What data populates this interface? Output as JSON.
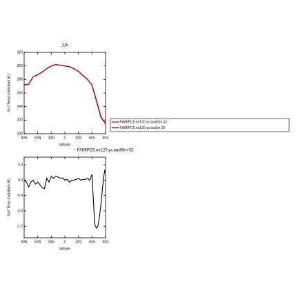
{
  "chart_data": [
    {
      "type": "line",
      "title": "JJA",
      "xlabel": "latitude",
      "ylabel": "Surf Temp (radiative) (K)",
      "x": [
        90,
        80,
        70,
        60,
        50,
        40,
        30,
        20,
        10,
        0,
        -10,
        -20,
        -30,
        -40,
        -50,
        -60,
        -70,
        -80,
        -90
      ],
      "series": [
        {
          "name": "FAMIPC5.ne120.ys.tau5m.02",
          "color": "#000000",
          "values": [
            272,
            273,
            284,
            287,
            291,
            296,
            300,
            302,
            301,
            300,
            299,
            296,
            292,
            286,
            280,
            272,
            249,
            225,
            214
          ]
        },
        {
          "name": "FAMIPC5.ne120.ys.tau60m.02",
          "color": "#c00000",
          "values": [
            272,
            273,
            284,
            287,
            291,
            296,
            300,
            302,
            301,
            300,
            299,
            296,
            292,
            286,
            280,
            272,
            248,
            224,
            215
          ]
        }
      ],
      "xlim": [
        90,
        -90
      ],
      "xticks": [
        {
          "value": 90,
          "label": "90N"
        },
        {
          "value": 60,
          "label": "60N"
        },
        {
          "value": 30,
          "label": "30N"
        },
        0,
        {
          "value": -30,
          "label": "30S"
        },
        {
          "value": -60,
          "label": "60S"
        },
        {
          "value": -90,
          "label": "90S"
        }
      ],
      "ylim": [
        200,
        320
      ],
      "yticks": [
        200,
        220,
        240,
        260,
        280,
        300,
        320
      ],
      "legend": "right"
    },
    {
      "type": "line",
      "title": "– FAMIPC5.ne120.ys.tau60m.02",
      "xlabel": "latitude",
      "ylabel": "Surf Temp (radiative) (K)",
      "x": [
        90,
        85,
        80,
        75,
        70,
        65,
        60,
        55,
        50,
        45,
        40,
        35,
        30,
        25,
        20,
        15,
        10,
        5,
        0,
        -5,
        -10,
        -15,
        -20,
        -25,
        -30,
        -35,
        -40,
        -45,
        -50,
        -55,
        -60,
        -63,
        -66,
        -70,
        -73,
        -76,
        -80,
        -85,
        -88,
        -90
      ],
      "series": [
        {
          "name": "FAMIPC5.ne120.ys.tau60m.02",
          "color": "#000000",
          "values": [
            0.0,
            -0.05,
            -0.18,
            -0.05,
            0.0,
            -0.1,
            -0.05,
            -0.12,
            -0.2,
            -0.22,
            0.05,
            -0.05,
            0.1,
            0.05,
            0.1,
            0.08,
            0.05,
            0.06,
            0.0,
            0.02,
            -0.05,
            0.0,
            0.0,
            0.02,
            0.05,
            0.0,
            0.02,
            0.02,
            0.05,
            0.0,
            0.15,
            -0.5,
            -1.15,
            -1.25,
            -1.2,
            -1.0,
            -0.6,
            0.0,
            0.25,
            0.2
          ]
        }
      ],
      "xlim": [
        90,
        -90
      ],
      "xticks": [
        {
          "value": 90,
          "label": "90N"
        },
        {
          "value": 60,
          "label": "60N"
        },
        {
          "value": 30,
          "label": "30N"
        },
        0,
        {
          "value": -30,
          "label": "30S"
        },
        {
          "value": -60,
          "label": "60S"
        },
        {
          "value": -90,
          "label": "90S"
        }
      ],
      "ylim": [
        -1.5,
        0.6
      ],
      "yticks": [
        -1.2,
        -0.8,
        -0.4,
        {
          "value": 0,
          "label": "0.0"
        },
        0.4
      ]
    }
  ]
}
